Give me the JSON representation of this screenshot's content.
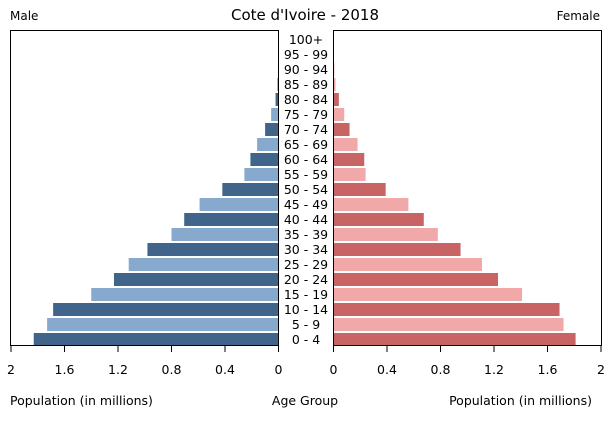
{
  "chart_data": {
    "type": "bar",
    "title": "Cote d'Ivoire - 2018",
    "left_label": "Male",
    "right_label": "Female",
    "xlabel_left": "Population (in millions)",
    "xlabel_center": "Age Group",
    "xlabel_right": "Population (in millions)",
    "xlim": [
      0,
      2
    ],
    "xticks": [
      "0",
      "0.4",
      "0.8",
      "1.2",
      "1.6",
      "2"
    ],
    "xtick_values": [
      0,
      0.4,
      0.8,
      1.2,
      1.6,
      2
    ],
    "categories": [
      "0 - 4",
      "5 - 9",
      "10 - 14",
      "15 - 19",
      "20 - 24",
      "25 - 29",
      "30 - 34",
      "35 - 39",
      "40 - 44",
      "45 - 49",
      "50 - 54",
      "55 - 59",
      "60 - 64",
      "65 - 69",
      "70 - 74",
      "75 - 79",
      "80 - 84",
      "85 - 89",
      "90 - 94",
      "95 - 99",
      "100+"
    ],
    "series": [
      {
        "name": "Male",
        "values": [
          1.83,
          1.73,
          1.685,
          1.4,
          1.23,
          1.12,
          0.98,
          0.8,
          0.705,
          0.59,
          0.42,
          0.255,
          0.21,
          0.16,
          0.1,
          0.055,
          0.022,
          0.01,
          0.004,
          0.001,
          0.0003
        ],
        "colors": [
          "#41648a",
          "#87a9cd"
        ]
      },
      {
        "name": "Female",
        "values": [
          1.81,
          1.72,
          1.69,
          1.41,
          1.23,
          1.11,
          0.95,
          0.78,
          0.675,
          0.56,
          0.39,
          0.24,
          0.23,
          0.18,
          0.12,
          0.08,
          0.04,
          0.015,
          0.005,
          0.002,
          0.0005
        ],
        "colors": [
          "#c86464",
          "#f0a8a8"
        ]
      }
    ]
  }
}
